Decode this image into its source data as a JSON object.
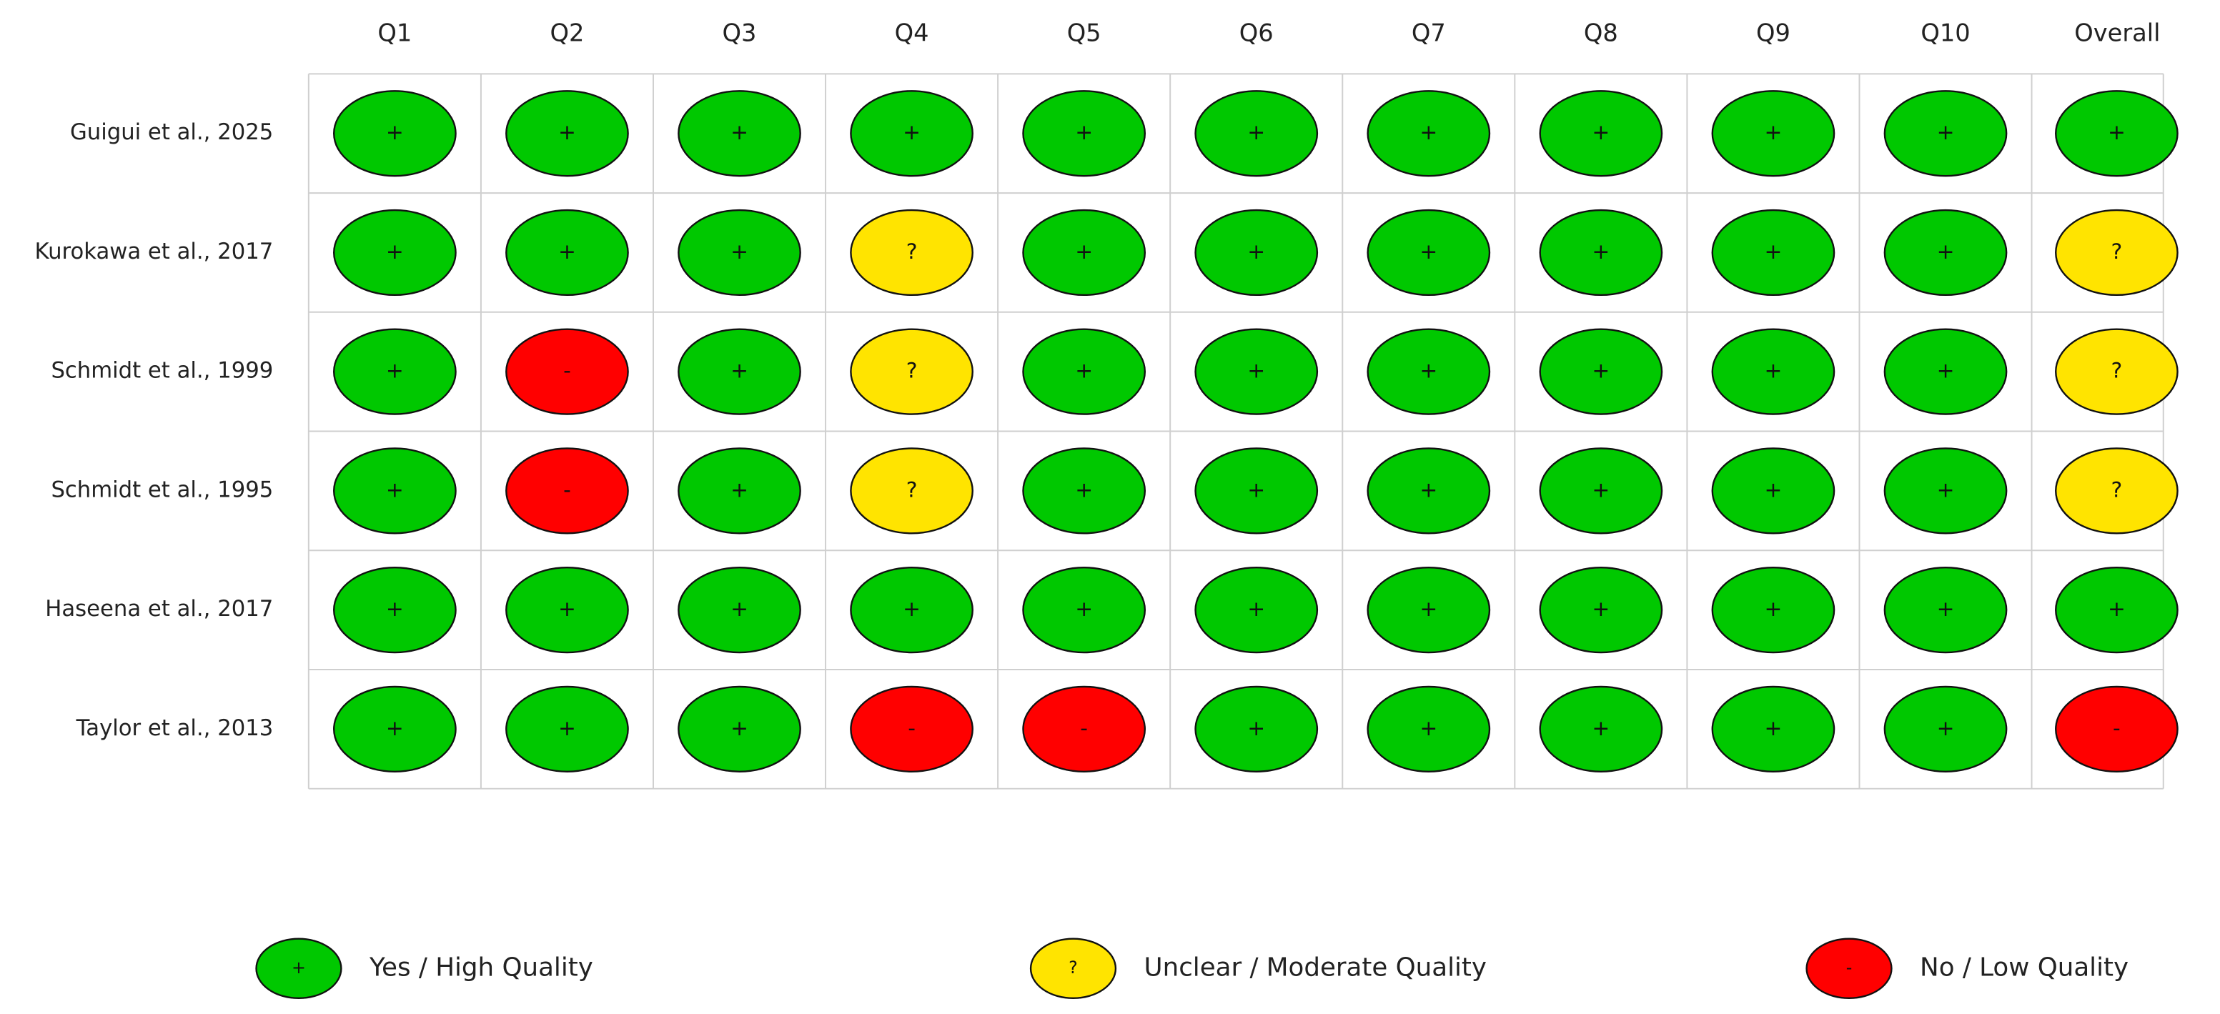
{
  "table": {
    "columns": [
      "Q1",
      "Q2",
      "Q3",
      "Q4",
      "Q5",
      "Q6",
      "Q7",
      "Q8",
      "Q9",
      "Q10",
      "Overall"
    ],
    "rows": [
      {
        "study": "Guigui et al., 2025",
        "cells": [
          "+",
          "+",
          "+",
          "+",
          "+",
          "+",
          "+",
          "+",
          "+",
          "+",
          "+"
        ]
      },
      {
        "study": "Kurokawa et al., 2017",
        "cells": [
          "+",
          "+",
          "+",
          "?",
          "+",
          "+",
          "+",
          "+",
          "+",
          "+",
          "?"
        ]
      },
      {
        "study": "Schmidt et al., 1999",
        "cells": [
          "+",
          "-",
          "+",
          "?",
          "+",
          "+",
          "+",
          "+",
          "+",
          "+",
          "?"
        ]
      },
      {
        "study": "Schmidt et al., 1995",
        "cells": [
          "+",
          "-",
          "+",
          "?",
          "+",
          "+",
          "+",
          "+",
          "+",
          "+",
          "?"
        ]
      },
      {
        "study": "Haseena et al., 2017",
        "cells": [
          "+",
          "+",
          "+",
          "+",
          "+",
          "+",
          "+",
          "+",
          "+",
          "+",
          "+"
        ]
      },
      {
        "study": "Taylor et al., 2013",
        "cells": [
          "+",
          "+",
          "+",
          "-",
          "-",
          "+",
          "+",
          "+",
          "+",
          "+",
          "-"
        ]
      }
    ]
  },
  "legend": [
    {
      "symbol": "+",
      "label": "Yes / High Quality",
      "color": "#00c800"
    },
    {
      "symbol": "?",
      "label": "Unclear / Moderate Quality",
      "color": "#ffe400"
    },
    {
      "symbol": "-",
      "label": "No / Low Quality",
      "color": "#ff0000"
    }
  ]
}
